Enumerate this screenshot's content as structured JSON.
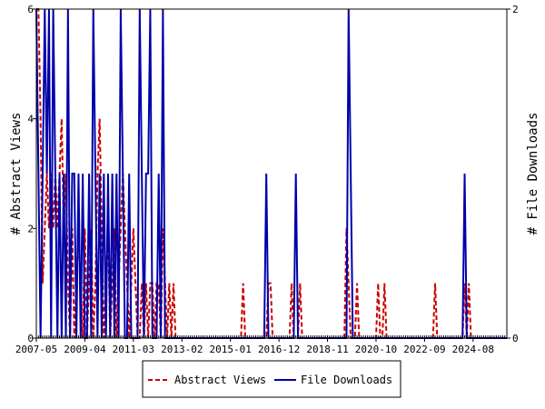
{
  "chart_data": {
    "type": "line",
    "title": "",
    "ylabel_left": "# Abstract Views",
    "ylabel_right": "# File Downloads",
    "x_start": "2007-05",
    "x_end": "2025-12",
    "x_tick_labels": [
      "2007-05",
      "2009-04",
      "2011-03",
      "2013-02",
      "2015-01",
      "2016-12",
      "2018-11",
      "2020-10",
      "2022-09",
      "2024-08"
    ],
    "yleft_lim": [
      0,
      6
    ],
    "yleft_ticks": [
      "0",
      "2",
      "4",
      "6"
    ],
    "yright_lim": [
      0,
      2
    ],
    "yright_ticks": [
      "0",
      "2"
    ],
    "grid": false,
    "legend_position": "bottom",
    "series": [
      {
        "name": "Abstract Views",
        "axis": "left",
        "color": "#cc0000",
        "style": "dashed",
        "points": [
          [
            "2007-05",
            6
          ],
          [
            "2007-06",
            6
          ],
          [
            "2007-07",
            4
          ],
          [
            "2007-08",
            1
          ],
          [
            "2007-09",
            2
          ],
          [
            "2007-10",
            3
          ],
          [
            "2007-11",
            2
          ],
          [
            "2007-12",
            3
          ],
          [
            "2008-01",
            2
          ],
          [
            "2008-02",
            3
          ],
          [
            "2008-03",
            2
          ],
          [
            "2008-04",
            3
          ],
          [
            "2008-05",
            4
          ],
          [
            "2008-06",
            2
          ],
          [
            "2008-07",
            3
          ],
          [
            "2008-08",
            1
          ],
          [
            "2008-09",
            0
          ],
          [
            "2008-10",
            2
          ],
          [
            "2008-11",
            0
          ],
          [
            "2008-12",
            1
          ],
          [
            "2009-01",
            2
          ],
          [
            "2009-02",
            1
          ],
          [
            "2009-03",
            0
          ],
          [
            "2009-04",
            2
          ],
          [
            "2009-05",
            0
          ],
          [
            "2009-06",
            1
          ],
          [
            "2009-07",
            2
          ],
          [
            "2009-08",
            0
          ],
          [
            "2009-09",
            1
          ],
          [
            "2009-10",
            3
          ],
          [
            "2009-11",
            4
          ],
          [
            "2009-12",
            2
          ],
          [
            "2010-01",
            0
          ],
          [
            "2010-02",
            1
          ],
          [
            "2010-03",
            2
          ],
          [
            "2010-04",
            0
          ],
          [
            "2010-05",
            1
          ],
          [
            "2010-06",
            2
          ],
          [
            "2010-07",
            0
          ],
          [
            "2010-08",
            1
          ],
          [
            "2010-09",
            2
          ],
          [
            "2010-10",
            3
          ],
          [
            "2010-11",
            2
          ],
          [
            "2010-12",
            1
          ],
          [
            "2011-01",
            0
          ],
          [
            "2011-02",
            1
          ],
          [
            "2011-03",
            2
          ],
          [
            "2011-04",
            1
          ],
          [
            "2011-05",
            0
          ],
          [
            "2011-06",
            0
          ],
          [
            "2011-07",
            1
          ],
          [
            "2011-08",
            0
          ],
          [
            "2011-09",
            1
          ],
          [
            "2011-10",
            0
          ],
          [
            "2011-11",
            1
          ],
          [
            "2011-12",
            1
          ],
          [
            "2012-01",
            0
          ],
          [
            "2012-02",
            1
          ],
          [
            "2012-03",
            1
          ],
          [
            "2012-04",
            0
          ],
          [
            "2012-05",
            2
          ],
          [
            "2012-06",
            1
          ],
          [
            "2012-07",
            0
          ],
          [
            "2012-08",
            1
          ],
          [
            "2012-09",
            0
          ],
          [
            "2012-10",
            1
          ],
          [
            "2012-11",
            0
          ],
          [
            "2015-07",
            1
          ],
          [
            "2015-08",
            0
          ],
          [
            "2016-07",
            1
          ],
          [
            "2016-08",
            1
          ],
          [
            "2016-09",
            0
          ],
          [
            "2017-06",
            1
          ],
          [
            "2017-07",
            0
          ],
          [
            "2017-10",
            1
          ],
          [
            "2017-11",
            0
          ],
          [
            "2019-08",
            2
          ],
          [
            "2019-09",
            1
          ],
          [
            "2019-10",
            0
          ],
          [
            "2020-01",
            1
          ],
          [
            "2020-02",
            0
          ],
          [
            "2020-11",
            1
          ],
          [
            "2020-12",
            0
          ],
          [
            "2021-02",
            1
          ],
          [
            "2021-03",
            0
          ],
          [
            "2023-02",
            1
          ],
          [
            "2023-03",
            0
          ],
          [
            "2024-04",
            1
          ],
          [
            "2024-05",
            0
          ],
          [
            "2024-06",
            1
          ],
          [
            "2024-07",
            0
          ]
        ]
      },
      {
        "name": "File Downloads",
        "axis": "right",
        "color": "#0000aa",
        "style": "solid",
        "points": [
          [
            "2007-05",
            2
          ],
          [
            "2007-06",
            1
          ],
          [
            "2007-07",
            0
          ],
          [
            "2007-08",
            1
          ],
          [
            "2007-09",
            2
          ],
          [
            "2007-10",
            1
          ],
          [
            "2007-11",
            2
          ],
          [
            "2007-12",
            0
          ],
          [
            "2008-01",
            2
          ],
          [
            "2008-02",
            1
          ],
          [
            "2008-03",
            0
          ],
          [
            "2008-04",
            1
          ],
          [
            "2008-05",
            0
          ],
          [
            "2008-06",
            1
          ],
          [
            "2008-07",
            0
          ],
          [
            "2008-08",
            2
          ],
          [
            "2008-09",
            0
          ],
          [
            "2008-10",
            1
          ],
          [
            "2008-11",
            1
          ],
          [
            "2008-12",
            0
          ],
          [
            "2009-01",
            1
          ],
          [
            "2009-02",
            0
          ],
          [
            "2009-03",
            1
          ],
          [
            "2009-04",
            0
          ],
          [
            "2009-05",
            0
          ],
          [
            "2009-06",
            1
          ],
          [
            "2009-07",
            0
          ],
          [
            "2009-08",
            2
          ],
          [
            "2009-09",
            1
          ],
          [
            "2009-10",
            0
          ],
          [
            "2009-11",
            1
          ],
          [
            "2009-12",
            0
          ],
          [
            "2010-01",
            1
          ],
          [
            "2010-02",
            0
          ],
          [
            "2010-03",
            1
          ],
          [
            "2010-04",
            0
          ],
          [
            "2010-05",
            1
          ],
          [
            "2010-06",
            0
          ],
          [
            "2010-07",
            1
          ],
          [
            "2010-08",
            0
          ],
          [
            "2010-09",
            2
          ],
          [
            "2010-10",
            1
          ],
          [
            "2010-11",
            0
          ],
          [
            "2011-01",
            1
          ],
          [
            "2011-02",
            0
          ],
          [
            "2011-03",
            0
          ],
          [
            "2011-04",
            0
          ],
          [
            "2011-06",
            2
          ],
          [
            "2011-07",
            1
          ],
          [
            "2011-08",
            0
          ],
          [
            "2011-09",
            1
          ],
          [
            "2011-10",
            1
          ],
          [
            "2011-11",
            2
          ],
          [
            "2011-12",
            0
          ],
          [
            "2012-01",
            0
          ],
          [
            "2012-02",
            0
          ],
          [
            "2012-03",
            1
          ],
          [
            "2012-04",
            0
          ],
          [
            "2012-05",
            2
          ],
          [
            "2012-06",
            0
          ],
          [
            "2013-01",
            0
          ],
          [
            "2013-02",
            0
          ],
          [
            "2013-03",
            0
          ],
          [
            "2013-04",
            0
          ],
          [
            "2013-05",
            0
          ],
          [
            "2014-05",
            0
          ],
          [
            "2016-06",
            1
          ],
          [
            "2016-07",
            0
          ],
          [
            "2017-08",
            1
          ],
          [
            "2017-09",
            0
          ],
          [
            "2019-09",
            2
          ],
          [
            "2019-10",
            1
          ],
          [
            "2020-01",
            0
          ],
          [
            "2024-04",
            1
          ],
          [
            "2024-05",
            0
          ]
        ]
      }
    ]
  }
}
